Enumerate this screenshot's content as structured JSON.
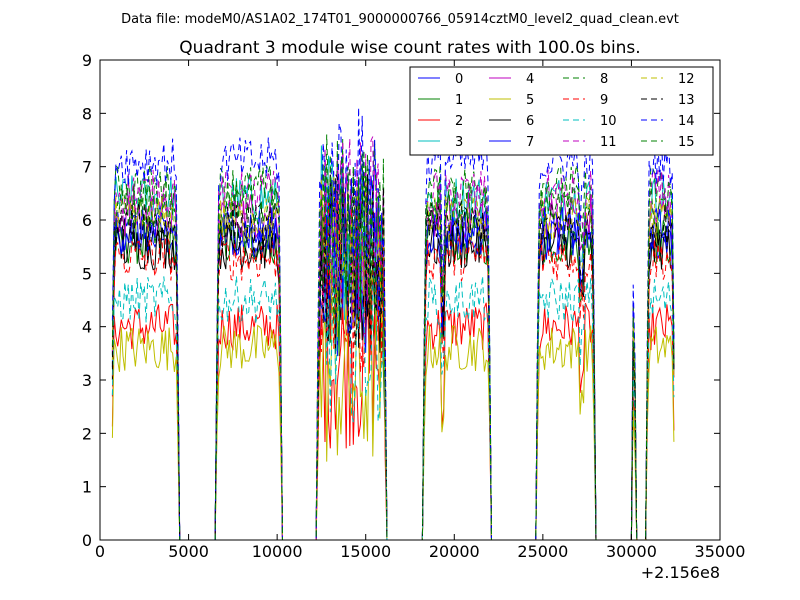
{
  "figure": {
    "suptitle": "Data file: modeM0/AS1A02_174T01_9000000766_05914cztM0_level2_quad_clean.evt",
    "background": "#ffffff"
  },
  "chart_data": {
    "type": "line",
    "title": "Quadrant 3 module wise count rates with 100.0s bins.",
    "xlabel": "",
    "ylabel": "",
    "x_offset_label": "+2.156e8",
    "xlim": [
      0,
      35000
    ],
    "ylim": [
      0,
      9
    ],
    "xticks": [
      0,
      5000,
      10000,
      15000,
      20000,
      25000,
      30000,
      35000
    ],
    "xtick_labels": [
      "0",
      "5000",
      "10000",
      "15000",
      "20000",
      "25000",
      "30000",
      "35000"
    ],
    "yticks": [
      0,
      1,
      2,
      3,
      4,
      5,
      6,
      7,
      8,
      9
    ],
    "ytick_labels": [
      "0",
      "1",
      "2",
      "3",
      "4",
      "5",
      "6",
      "7",
      "8",
      "9"
    ],
    "grid": false,
    "legend_position": "top-right",
    "legend_columns": 4,
    "bin_seconds": 100,
    "observation_windows": [
      [
        700,
        4400
      ],
      [
        6600,
        10200
      ],
      [
        12300,
        16100
      ],
      [
        18300,
        22000
      ],
      [
        24700,
        27900
      ],
      [
        30050,
        30200
      ],
      [
        30900,
        32400
      ]
    ],
    "series": [
      {
        "name": "0",
        "color": "#0000ff",
        "dash": "solid",
        "mean_rate": 5.7
      },
      {
        "name": "1",
        "color": "#008000",
        "dash": "solid",
        "mean_rate": 5.6
      },
      {
        "name": "2",
        "color": "#ff0000",
        "dash": "solid",
        "mean_rate": 4.0
      },
      {
        "name": "3",
        "color": "#00bfbf",
        "dash": "solid",
        "mean_rate": 6.4
      },
      {
        "name": "4",
        "color": "#bf00bf",
        "dash": "solid",
        "mean_rate": 6.1
      },
      {
        "name": "5",
        "color": "#bfbf00",
        "dash": "solid",
        "mean_rate": 3.6
      },
      {
        "name": "6",
        "color": "#000000",
        "dash": "solid",
        "mean_rate": 5.5
      },
      {
        "name": "7",
        "color": "#0000ff",
        "dash": "solid",
        "mean_rate": 5.8
      },
      {
        "name": "8",
        "color": "#008000",
        "dash": "dashed",
        "mean_rate": 6.6
      },
      {
        "name": "9",
        "color": "#ff0000",
        "dash": "dashed",
        "mean_rate": 5.3
      },
      {
        "name": "10",
        "color": "#00bfbf",
        "dash": "dashed",
        "mean_rate": 4.5
      },
      {
        "name": "11",
        "color": "#bf00bf",
        "dash": "dashed",
        "mean_rate": 6.5
      },
      {
        "name": "12",
        "color": "#bfbf00",
        "dash": "dashed",
        "mean_rate": 6.0
      },
      {
        "name": "13",
        "color": "#000000",
        "dash": "dashed",
        "mean_rate": 5.9
      },
      {
        "name": "14",
        "color": "#0000ff",
        "dash": "dashed",
        "mean_rate": 7.1
      },
      {
        "name": "15",
        "color": "#008000",
        "dash": "dashed",
        "mean_rate": 6.3
      }
    ]
  }
}
